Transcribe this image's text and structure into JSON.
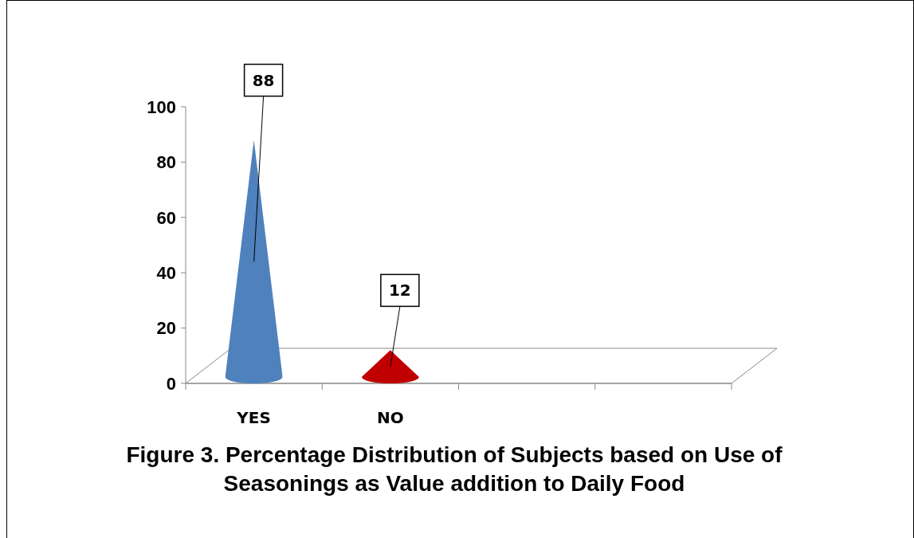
{
  "chart_data": {
    "type": "bar",
    "title": "Figure 3. Percentage Distribution of Subjects based on Use of Seasonings as Value addition to Daily Food",
    "categories": [
      "YES",
      "NO",
      null,
      null
    ],
    "values": [
      88,
      12,
      null,
      null
    ],
    "colors": [
      "#4f81bd",
      "#c00000",
      null,
      null
    ],
    "ylim": [
      0,
      100
    ],
    "yticks": [
      0,
      20,
      40,
      60,
      80,
      100
    ],
    "grid": false,
    "data_labels": true
  }
}
